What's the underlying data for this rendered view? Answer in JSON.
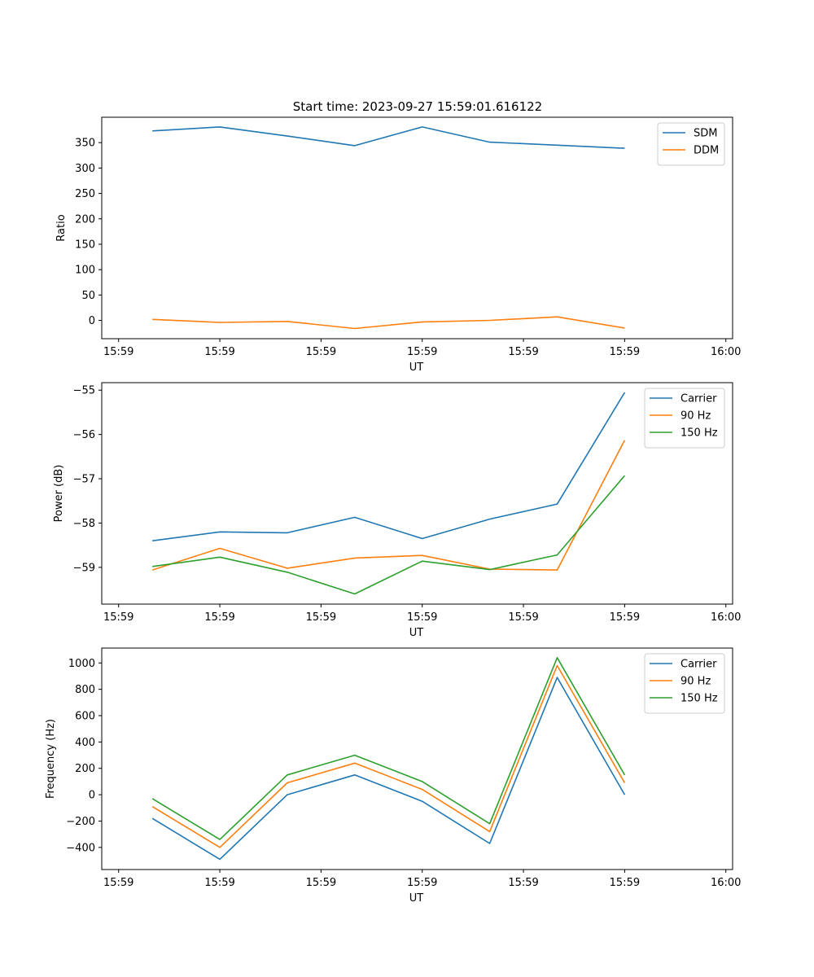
{
  "figure_title": "Start time: 2023-09-27 15:59:01.616122",
  "chart_data": [
    {
      "type": "line",
      "title": "Start time: 2023-09-27 15:59:01.616122",
      "xlabel": "UT",
      "ylabel": "Ratio",
      "x": [
        1,
        2,
        3,
        4,
        5,
        6,
        7,
        8
      ],
      "xlim": [
        0.25,
        9.6
      ],
      "xticks": [
        0.5,
        2.0,
        3.5,
        5.0,
        6.5,
        8.0,
        9.5
      ],
      "xtick_labels": [
        "15:59",
        "15:59",
        "15:59",
        "15:59",
        "15:59",
        "15:59",
        "16:00"
      ],
      "ylim": [
        -36,
        400
      ],
      "yticks": [
        0,
        50,
        100,
        150,
        200,
        250,
        300,
        350
      ],
      "ytick_labels": [
        "0",
        "50",
        "100",
        "150",
        "200",
        "250",
        "300",
        "350"
      ],
      "legend_position": "top-right",
      "series": [
        {
          "name": "SDM",
          "color": "#1f77b4",
          "values": [
            373,
            381,
            363,
            344,
            381,
            351,
            345,
            339
          ]
        },
        {
          "name": "DDM",
          "color": "#ff7f0e",
          "values": [
            2,
            -4,
            -2,
            -16,
            -3,
            0,
            7,
            -15
          ]
        }
      ]
    },
    {
      "type": "line",
      "title": "",
      "xlabel": "UT",
      "ylabel": "Power (dB)",
      "x": [
        1,
        2,
        3,
        4,
        5,
        6,
        7,
        8
      ],
      "xlim": [
        0.25,
        9.6
      ],
      "xticks": [
        0.5,
        2.0,
        3.5,
        5.0,
        6.5,
        8.0,
        9.5
      ],
      "xtick_labels": [
        "15:59",
        "15:59",
        "15:59",
        "15:59",
        "15:59",
        "15:59",
        "16:00"
      ],
      "ylim": [
        -59.83,
        -54.83
      ],
      "yticks": [
        -59,
        -58,
        -57,
        -56,
        -55
      ],
      "ytick_labels": [
        "−59",
        "−58",
        "−57",
        "−56",
        "−55"
      ],
      "legend_position": "top-right",
      "series": [
        {
          "name": "Carrier",
          "color": "#1f77b4",
          "values": [
            -58.4,
            -58.2,
            -58.22,
            -57.87,
            -58.35,
            -57.91,
            -57.57,
            -55.05
          ]
        },
        {
          "name": "90 Hz",
          "color": "#ff7f0e",
          "values": [
            -59.06,
            -58.57,
            -59.02,
            -58.79,
            -58.73,
            -59.04,
            -59.06,
            -56.13
          ]
        },
        {
          "name": "150 Hz",
          "color": "#2ca02c",
          "values": [
            -58.98,
            -58.77,
            -59.11,
            -59.6,
            -58.86,
            -59.05,
            -58.72,
            -56.93
          ]
        }
      ]
    },
    {
      "type": "line",
      "title": "",
      "xlabel": "UT",
      "ylabel": "Frequency (Hz)",
      "x": [
        1,
        2,
        3,
        4,
        5,
        6,
        7,
        8
      ],
      "xlim": [
        0.25,
        9.6
      ],
      "xticks": [
        0.5,
        2.0,
        3.5,
        5.0,
        6.5,
        8.0,
        9.5
      ],
      "xtick_labels": [
        "15:59",
        "15:59",
        "15:59",
        "15:59",
        "15:59",
        "15:59",
        "16:00"
      ],
      "ylim": [
        -568,
        1113
      ],
      "yticks": [
        -400,
        -200,
        0,
        200,
        400,
        600,
        800,
        1000
      ],
      "ytick_labels": [
        "−400",
        "−200",
        "0",
        "200",
        "400",
        "600",
        "800",
        "1000"
      ],
      "legend_position": "top-right",
      "series": [
        {
          "name": "Carrier",
          "color": "#1f77b4",
          "values": [
            -180,
            -490,
            0,
            150,
            -50,
            -370,
            890,
            0
          ]
        },
        {
          "name": "90 Hz",
          "color": "#ff7f0e",
          "values": [
            -90,
            -400,
            90,
            240,
            40,
            -280,
            980,
            90
          ]
        },
        {
          "name": "150 Hz",
          "color": "#2ca02c",
          "values": [
            -30,
            -340,
            150,
            300,
            100,
            -220,
            1040,
            150
          ]
        }
      ]
    }
  ]
}
